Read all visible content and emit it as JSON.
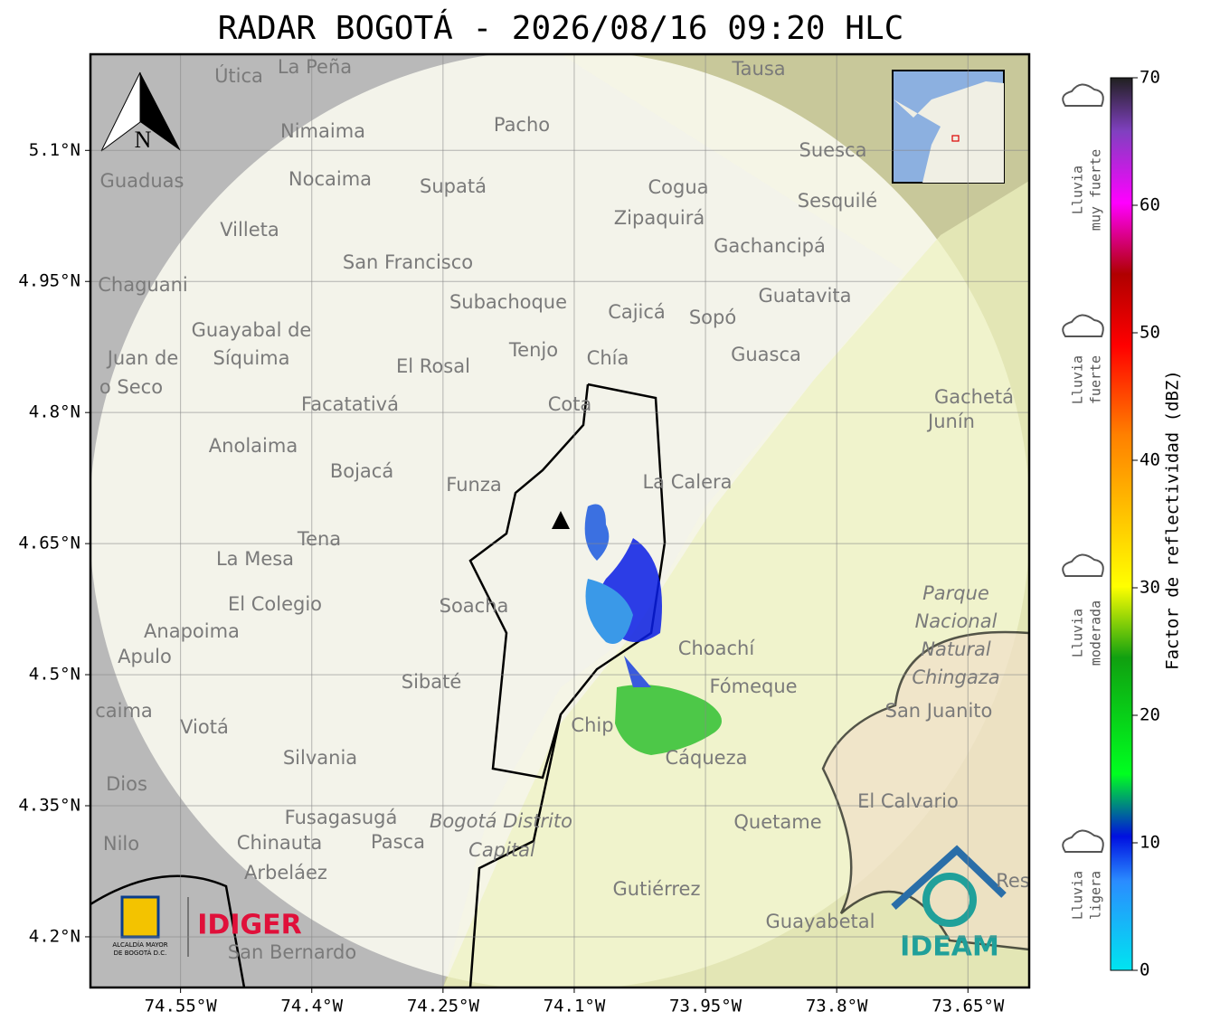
{
  "header": {
    "title": "RADAR BOGOTÁ - 2026/08/16 09:20 HLC"
  },
  "map": {
    "xlim": [
      -74.653,
      -73.58
    ],
    "ylim": [
      4.142,
      5.21
    ],
    "xticks": [
      {
        "value": -74.55,
        "label": "74.55°W"
      },
      {
        "value": -74.4,
        "label": "74.4°W"
      },
      {
        "value": -74.25,
        "label": "74.25°W"
      },
      {
        "value": -74.1,
        "label": "74.1°W"
      },
      {
        "value": -73.95,
        "label": "73.95°W"
      },
      {
        "value": -73.8,
        "label": "73.8°W"
      },
      {
        "value": -73.65,
        "label": "73.65°W"
      }
    ],
    "yticks": [
      {
        "value": 5.1,
        "label": "5.1°N"
      },
      {
        "value": 4.95,
        "label": "4.95°N"
      },
      {
        "value": 4.8,
        "label": "4.8°N"
      },
      {
        "value": 4.65,
        "label": "4.65°N"
      },
      {
        "value": 4.5,
        "label": "4.5°N"
      },
      {
        "value": 4.35,
        "label": "4.35°N"
      },
      {
        "value": 4.2,
        "label": "4.2°N"
      }
    ],
    "north": "N",
    "places": [
      "La Peña",
      "Útica",
      "Tausa",
      "Pacho",
      "Nimaima",
      "Guaduas",
      "Nocaima",
      "Supatá",
      "Cogua",
      "Suesca",
      "Sesquilé",
      "Zipaquirá",
      "Villeta",
      "Gachancipá",
      "San Francisco",
      "Chaguani",
      "Guatavita",
      "Subachoque",
      "Cajicá",
      "Sopó",
      "Guayabal de",
      "Síquima",
      "Juan de",
      "o Seco",
      "Tenjo",
      "Chía",
      "El Rosal",
      "Guasca",
      "Facatativá",
      "Cota",
      "Gachetá",
      "Junín",
      "Anolaima",
      "Bojacá",
      "Funza",
      "La Calera",
      "Tena",
      "La Mesa",
      "El Colegio",
      "Soacha",
      "Parque",
      "Nacional",
      "Natural",
      "Chingaza",
      "Anapoima",
      "Apulo",
      "Choachí",
      "Fómeque",
      "San Juanito",
      "Sibaté",
      "caima",
      "Viotá",
      "Chip",
      "Cáqueza",
      "Silvania",
      "Dios",
      "El Calvario",
      "Fusagasugá",
      "Quetame",
      "Bogotá Distrito",
      "Capital",
      "Nilo",
      "Chinauta",
      "Pasca",
      "Arbeláez",
      "Gutiérrez",
      "Guayabetal",
      "San Bernardo",
      "Res"
    ]
  },
  "logos": {
    "alcaldia": [
      "ALCALDÍA MAYOR",
      "DE BOGOTÁ D.C."
    ],
    "idiger": "IDIGER",
    "ideam": "IDEAM"
  },
  "colorbar": {
    "label": "Factor de reflectividad (dBZ)",
    "lim": [
      0,
      70
    ],
    "ticks": [
      0,
      10,
      20,
      30,
      40,
      50,
      60,
      70
    ],
    "categories": [
      [
        "Lluvia",
        "muy fuerte"
      ],
      [
        "Lluvia",
        "fuerte"
      ],
      [
        "Lluvia",
        "moderada"
      ],
      [
        "Lluvia",
        "ligera"
      ]
    ]
  }
}
